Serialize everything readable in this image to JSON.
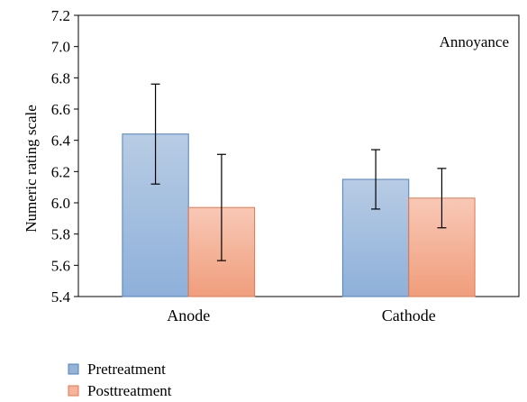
{
  "chart_data": {
    "type": "bar",
    "title": "",
    "annotation": "Annoyance",
    "xlabel": "",
    "ylabel": "Numeric rating scale",
    "ylim": [
      5.4,
      7.2
    ],
    "yticks": [
      "5.4",
      "5.6",
      "5.8",
      "6.0",
      "6.2",
      "6.4",
      "6.6",
      "6.8",
      "7.0",
      "7.2"
    ],
    "grid": false,
    "legend_position": "bottom-left",
    "categories": [
      "Anode",
      "Cathode"
    ],
    "series": [
      {
        "name": "Pretreatment",
        "values": [
          6.44,
          6.15
        ],
        "error_low": [
          6.12,
          5.96
        ],
        "error_high": [
          6.76,
          6.34
        ],
        "color": "#95b3d7",
        "stroke": "#4f81bd"
      },
      {
        "name": "Posttreatment",
        "values": [
          5.97,
          6.03
        ],
        "error_low": [
          5.63,
          5.84
        ],
        "error_high": [
          6.31,
          6.22
        ],
        "color": "#f5b39a",
        "stroke": "#e4774b"
      }
    ]
  }
}
